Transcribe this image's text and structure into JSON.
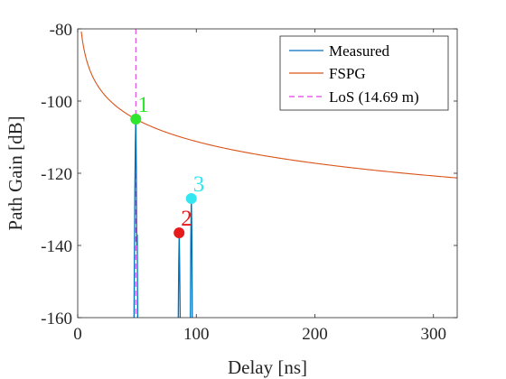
{
  "chart_data": {
    "type": "line",
    "xlabel": "Delay [ns]",
    "ylabel": "Path Gain [dB]",
    "xlim": [
      0,
      320
    ],
    "ylim": [
      -160,
      -80
    ],
    "xticks": [
      0,
      100,
      200,
      300
    ],
    "yticks": [
      -80,
      -100,
      -120,
      -140,
      -160
    ],
    "xtick_labels": [
      "0",
      "100",
      "200",
      "300"
    ],
    "ytick_labels": [
      "-80",
      "-100",
      "-120",
      "-140",
      "-160"
    ],
    "grid": false,
    "legend_position": "top-right",
    "series": [
      {
        "name": "Measured",
        "color": "#0072BD",
        "style": "solid",
        "points": [
          [
            47.5,
            -160
          ],
          [
            48.2,
            -125
          ],
          [
            48.6,
            -112
          ],
          [
            49.0,
            -105
          ],
          [
            49.4,
            -118
          ],
          [
            49.8,
            -140
          ],
          [
            50.2,
            -137
          ],
          [
            50.6,
            -160
          ],
          [
            84.8,
            -160
          ],
          [
            85.2,
            -145
          ],
          [
            85.6,
            -136.5
          ],
          [
            86.0,
            -147
          ],
          [
            86.4,
            -160
          ],
          [
            95.0,
            -160
          ],
          [
            95.4,
            -138
          ],
          [
            95.8,
            -127
          ],
          [
            96.2,
            -135
          ],
          [
            96.6,
            -160
          ]
        ]
      },
      {
        "name": "FSPG",
        "color": "#D95319",
        "style": "solid",
        "function": "fspl",
        "ref_point": [
          49.0,
          -105
        ]
      },
      {
        "name": "LoS (14.69 m)",
        "color": "#E040E0",
        "style": "dashed",
        "x": 49.0
      }
    ],
    "markers": [
      {
        "label": "1",
        "x": 49.0,
        "y": -105.0,
        "color": "#2EE62E"
      },
      {
        "label": "2",
        "x": 85.5,
        "y": -136.5,
        "color": "#E61A1A"
      },
      {
        "label": "3",
        "x": 95.8,
        "y": -127.0,
        "color": "#33E6F0"
      }
    ]
  }
}
